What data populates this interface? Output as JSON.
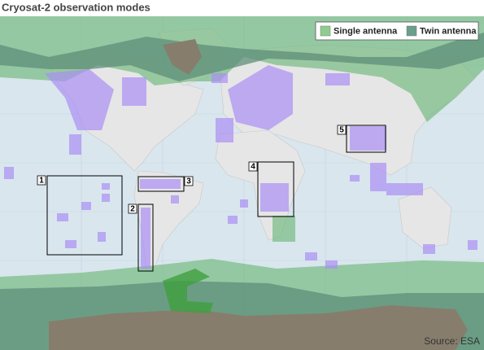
{
  "title": "Cryosat-2 observation modes",
  "legend": [
    {
      "label": "Single antenna",
      "color": "#8fcd8f"
    },
    {
      "label": "Twin antenna",
      "color": "#6a9f8a"
    }
  ],
  "regions": [
    {
      "label": "1"
    },
    {
      "label": "2"
    },
    {
      "label": "3"
    },
    {
      "label": "4"
    },
    {
      "label": "5"
    }
  ],
  "source": "Source: ESA"
}
